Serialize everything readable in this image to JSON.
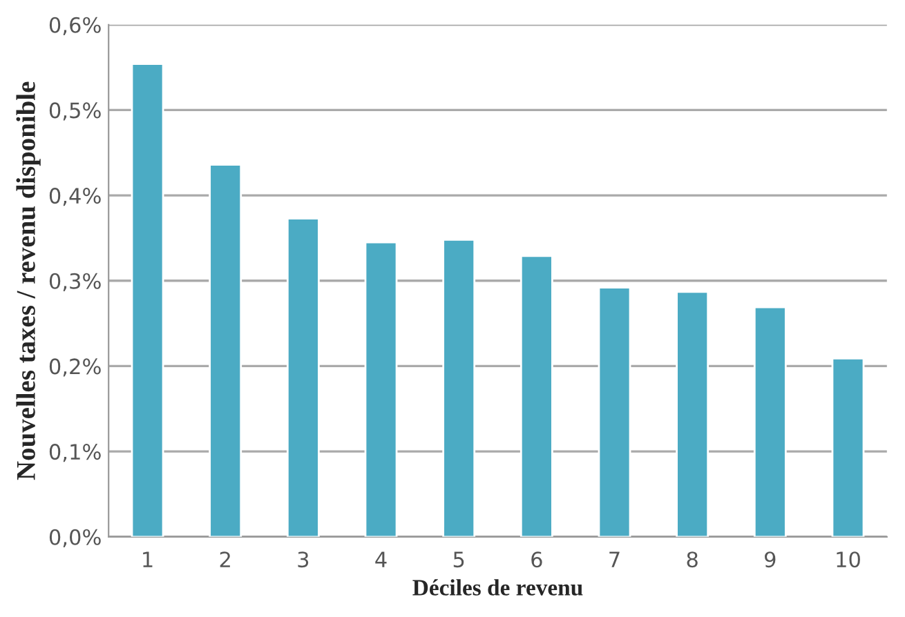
{
  "chart_data": {
    "type": "bar",
    "xlabel": "Déciles de revenu",
    "ylabel": "Nouvelles taxes / revenu disponible",
    "categories": [
      "1",
      "2",
      "3",
      "4",
      "5",
      "6",
      "7",
      "8",
      "9",
      "10"
    ],
    "values": [
      0.554,
      0.436,
      0.373,
      0.345,
      0.348,
      0.329,
      0.292,
      0.287,
      0.269,
      0.209
    ],
    "color": "#4babc4",
    "ylim": [
      0,
      0.6
    ],
    "yticks": [
      {
        "value": 0,
        "label": "0,0%"
      },
      {
        "value": 0.1,
        "label": "0,1%"
      },
      {
        "value": 0.2,
        "label": "0,2%"
      },
      {
        "value": 0.3,
        "label": "0,3%"
      },
      {
        "value": 0.4,
        "label": "0,4%"
      },
      {
        "value": 0.5,
        "label": "0,5%"
      },
      {
        "value": 0.6,
        "label": "0,6%"
      }
    ],
    "grid": "y"
  }
}
